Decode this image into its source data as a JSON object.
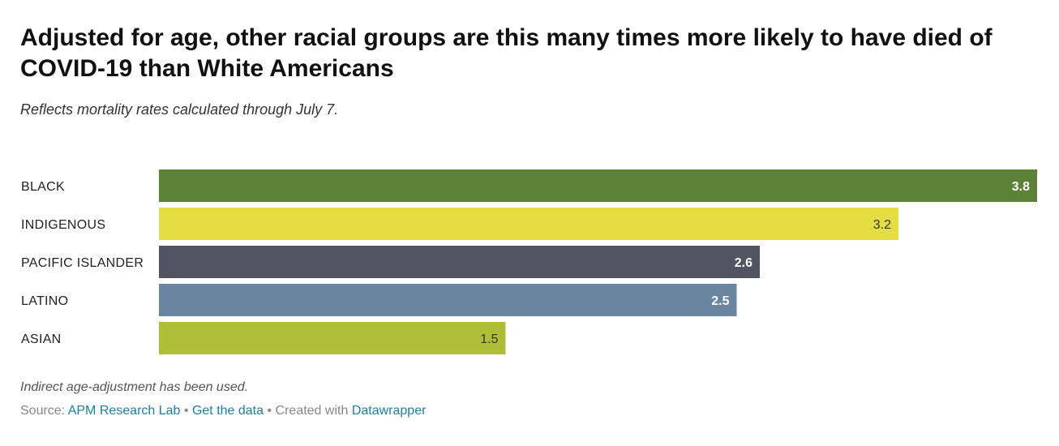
{
  "header": {
    "title": "Adjusted for age, other racial groups are this many times more likely to have died of COVID-19 than White Americans",
    "subtitle": "Reflects mortality rates calculated through July 7."
  },
  "footer": {
    "notes": "Indirect age-adjustment has been used.",
    "source_label": "Source:",
    "source_link": "APM Research Lab",
    "separator": "•",
    "get_data": "Get the data",
    "created_with": "Created with",
    "tool_link": "Datawrapper"
  },
  "chart_data": {
    "type": "bar",
    "orientation": "horizontal",
    "title": "Adjusted for age, other racial groups are this many times more likely to have died of COVID-19 than White Americans",
    "subtitle": "Reflects mortality rates calculated through July 7.",
    "categories": [
      "BLACK",
      "INDIGENOUS",
      "PACIFIC ISLANDER",
      "LATINO",
      "ASIAN"
    ],
    "values": [
      3.8,
      3.2,
      2.6,
      2.5,
      1.5
    ],
    "value_labels": [
      "3.8",
      "3.2",
      "2.6",
      "2.5",
      "1.5"
    ],
    "colors": [
      "#5b8236",
      "#e5de42",
      "#515462",
      "#6985a0",
      "#afbe37"
    ],
    "label_colors": [
      "#ffffff",
      "#333333",
      "#ffffff",
      "#ffffff",
      "#333333"
    ],
    "xlim": [
      0,
      3.8
    ],
    "xlabel": "",
    "ylabel": "",
    "grid": false,
    "legend": "none",
    "data_labels": "inside-end"
  }
}
